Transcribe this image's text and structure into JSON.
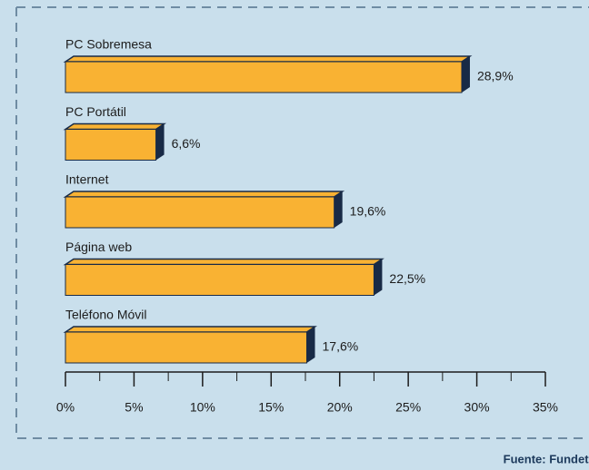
{
  "chart_data": {
    "type": "bar",
    "orientation": "horizontal",
    "categories": [
      "PC Sobremesa",
      "PC Portátil",
      "Internet",
      "Página web",
      "Teléfono Móvil"
    ],
    "values": [
      28.9,
      6.6,
      19.6,
      22.5,
      17.6
    ],
    "value_labels": [
      "28,9%",
      "6,6%",
      "19,6%",
      "22,5%",
      "17,6%"
    ],
    "color": "#f9b233",
    "side_color": "#182a46",
    "xlim": [
      0,
      35
    ],
    "xticks": [
      {
        "value": 0,
        "label": "0%"
      },
      {
        "value": 5,
        "label": "5%"
      },
      {
        "value": 10,
        "label": "10%"
      },
      {
        "value": 15,
        "label": "15%"
      },
      {
        "value": 20,
        "label": "20%"
      },
      {
        "value": 25,
        "label": "25%"
      },
      {
        "value": 30,
        "label": "30%"
      },
      {
        "value": 35,
        "label": "35%"
      }
    ],
    "source": "Fuente: Fundetec"
  }
}
